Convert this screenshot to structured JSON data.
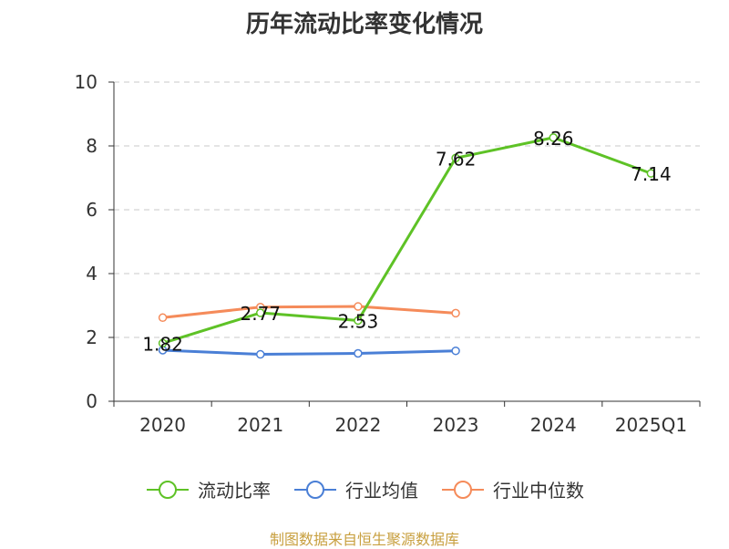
{
  "chart_data": {
    "type": "line",
    "title": "历年流动比率变化情况",
    "categories": [
      "2020",
      "2021",
      "2022",
      "2023",
      "2024",
      "2025Q1"
    ],
    "ylim": [
      0,
      10
    ],
    "yticks": [
      0,
      2,
      4,
      6,
      8,
      10
    ],
    "grid": true,
    "legend_position": "bottom",
    "series": [
      {
        "name": "流动比率",
        "color": "#5ec226",
        "values": [
          1.82,
          2.77,
          2.53,
          7.62,
          8.26,
          7.14
        ],
        "labels": [
          "1.82",
          "2.77",
          "2.53",
          "7.62",
          "8.26",
          "7.14"
        ]
      },
      {
        "name": "行业均值",
        "color": "#4a7fd6",
        "values": [
          1.6,
          1.47,
          1.5,
          1.58,
          null,
          null
        ]
      },
      {
        "name": "行业中位数",
        "color": "#f58b5a",
        "values": [
          2.62,
          2.95,
          2.97,
          2.76,
          null,
          null
        ]
      }
    ]
  },
  "footer": {
    "source": "制图数据来自恒生聚源数据库",
    "source_color": "#c8a040"
  }
}
